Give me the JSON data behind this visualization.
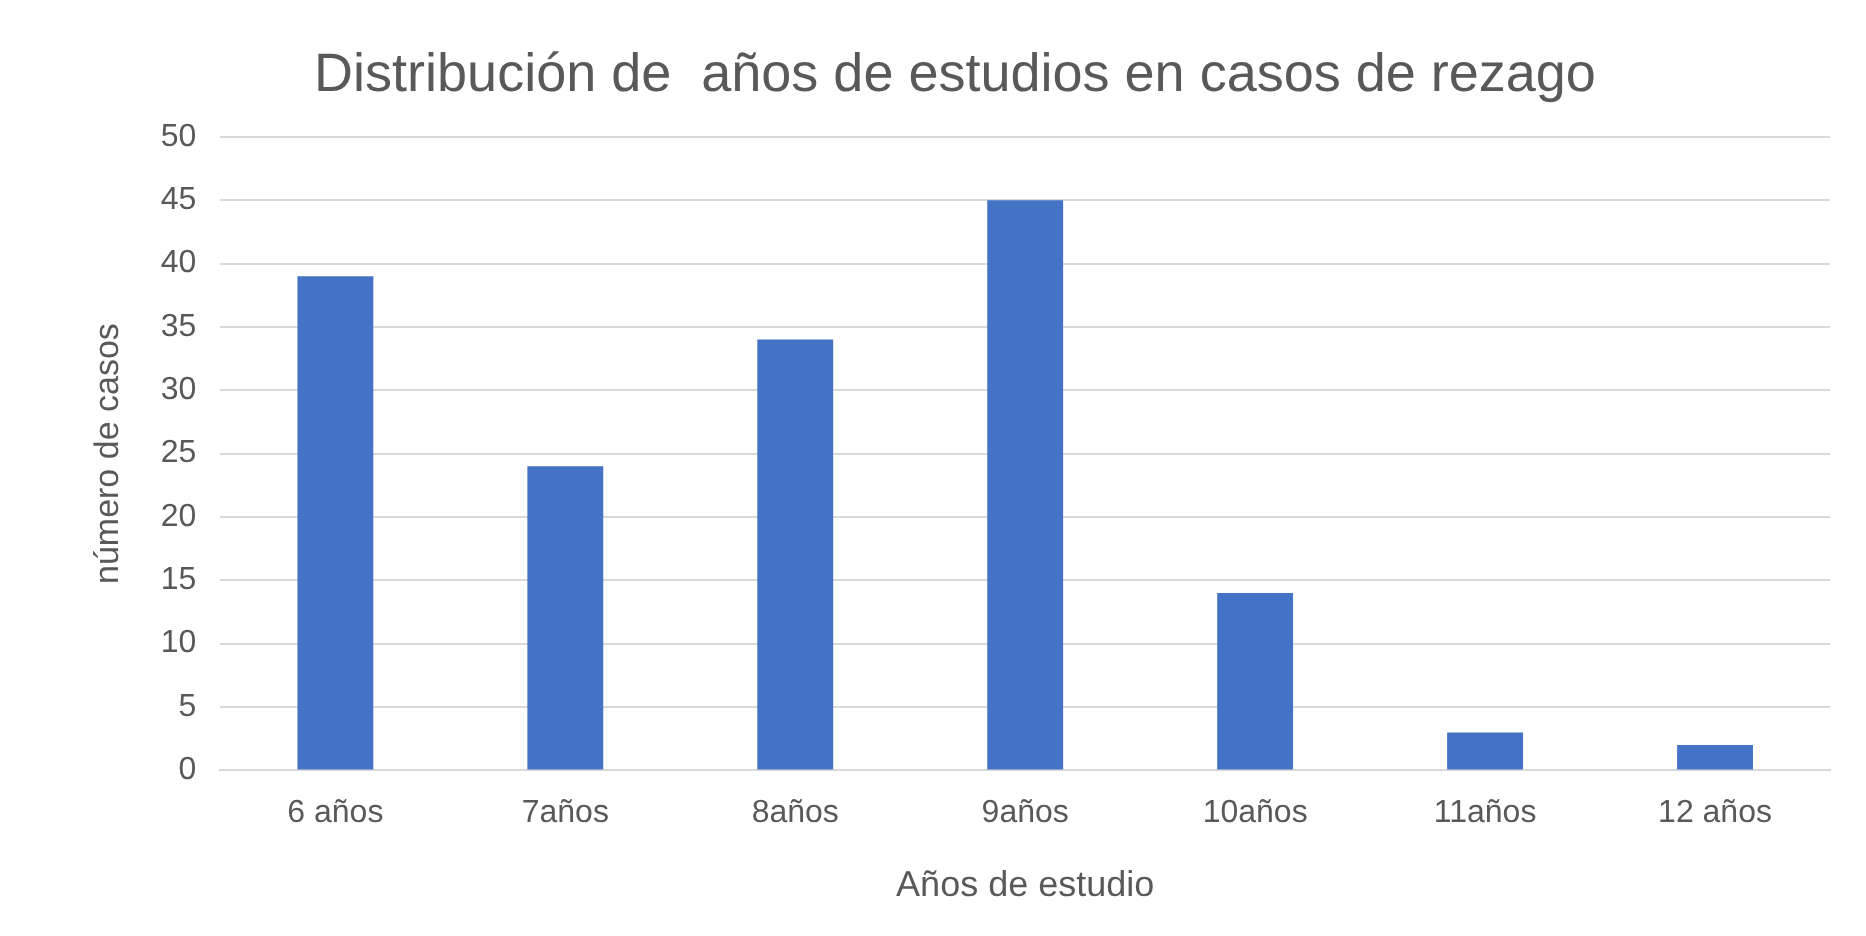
{
  "chart_data": {
    "type": "bar",
    "title": "Distribución de  años de estudios en casos de rezago",
    "xlabel": "Años de estudio",
    "ylabel": "número de casos",
    "categories": [
      "6 años",
      "7años",
      "8años",
      "9años",
      "10años",
      "11años",
      "12 años"
    ],
    "values": [
      39,
      24,
      34,
      45,
      14,
      3,
      2
    ],
    "color": "#4472c4",
    "ylim": [
      0,
      50
    ],
    "yticks": [
      0,
      5,
      10,
      15,
      20,
      25,
      30,
      35,
      40,
      45,
      50
    ],
    "grid": "y"
  }
}
